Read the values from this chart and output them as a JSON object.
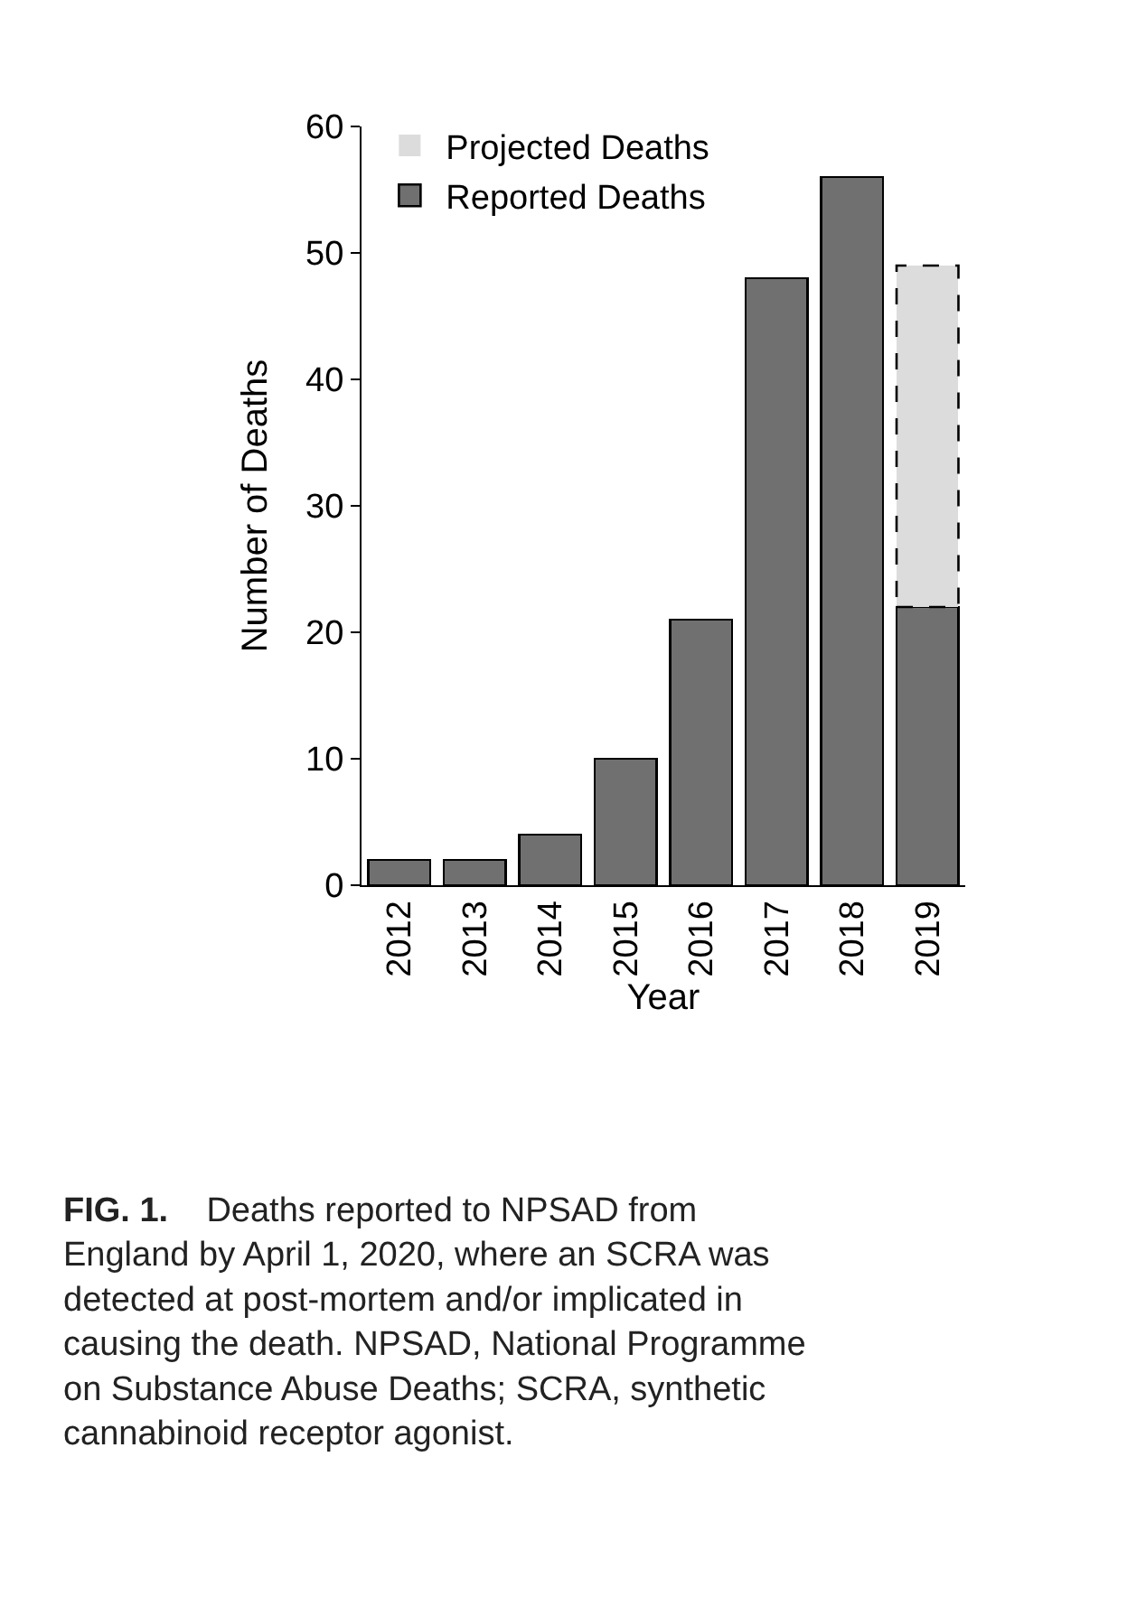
{
  "chart_data": {
    "type": "bar",
    "stacked": true,
    "categories": [
      "2012",
      "2013",
      "2014",
      "2015",
      "2016",
      "2017",
      "2018",
      "2019"
    ],
    "series": [
      {
        "name": "Reported Deaths",
        "color": "#707070",
        "values": [
          2,
          2,
          4,
          10,
          21,
          48,
          56,
          22
        ]
      },
      {
        "name": "Projected Deaths",
        "color": "#dcdcdc",
        "line_style": "dashed",
        "values": [
          null,
          null,
          null,
          null,
          null,
          null,
          null,
          27
        ]
      }
    ],
    "xlabel": "Year",
    "ylabel": "Number of Deaths",
    "ylim": [
      0,
      60
    ],
    "yticks": [
      0,
      10,
      20,
      30,
      40,
      50,
      60
    ],
    "legend": "top left",
    "annotations": [
      "FIG. 1.",
      "Deaths reported to NPSAD from England by April 1, 2020, where an SCRA was detected at post-mortem and/or implicated in causing the death. NPSAD, National Programme on Substance Abuse Deaths; SCRA, synthetic cannabinoid receptor agonist."
    ]
  }
}
